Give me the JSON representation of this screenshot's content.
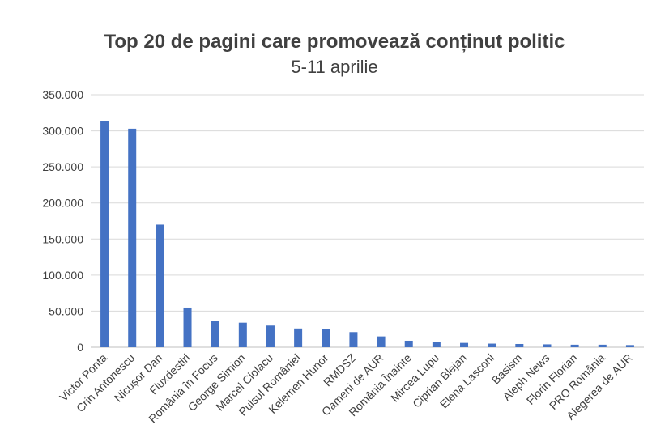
{
  "chart_data": {
    "type": "bar",
    "title": "Top 20 de pagini care promovează conținut politic",
    "subtitle": "5-11 aprilie",
    "xlabel": "",
    "ylabel": "",
    "ylim": [
      0,
      350000
    ],
    "yticks": [
      0,
      50000,
      100000,
      150000,
      200000,
      250000,
      300000,
      350000
    ],
    "ytick_labels": [
      "0",
      "50.000",
      "100.000",
      "150.000",
      "200.000",
      "250.000",
      "300.000",
      "350.000"
    ],
    "grid": true,
    "legend": "none",
    "bar_color": "#4472C4",
    "categories": [
      "Victor Ponta",
      "Crin Antonescu",
      "Nicușor Dan",
      "Fluxdestiri",
      "România în Focus",
      "George Simion",
      "Marcel Ciolacu",
      "Pulsul României",
      "Kelemen Hunor",
      "RMDSZ",
      "Oameni de AUR",
      "România Înainte",
      "Mircea Lupu",
      "Ciprian Blejan",
      "Elena Lasconi",
      "Basism",
      "Aleph News",
      "Florin Florian",
      "PRO România",
      "Alegerea de AUR"
    ],
    "values": [
      313000,
      303000,
      170000,
      55000,
      36000,
      34000,
      30000,
      26000,
      25000,
      21000,
      15000,
      9000,
      7000,
      6000,
      5000,
      4500,
      4000,
      3500,
      3500,
      3000
    ]
  }
}
